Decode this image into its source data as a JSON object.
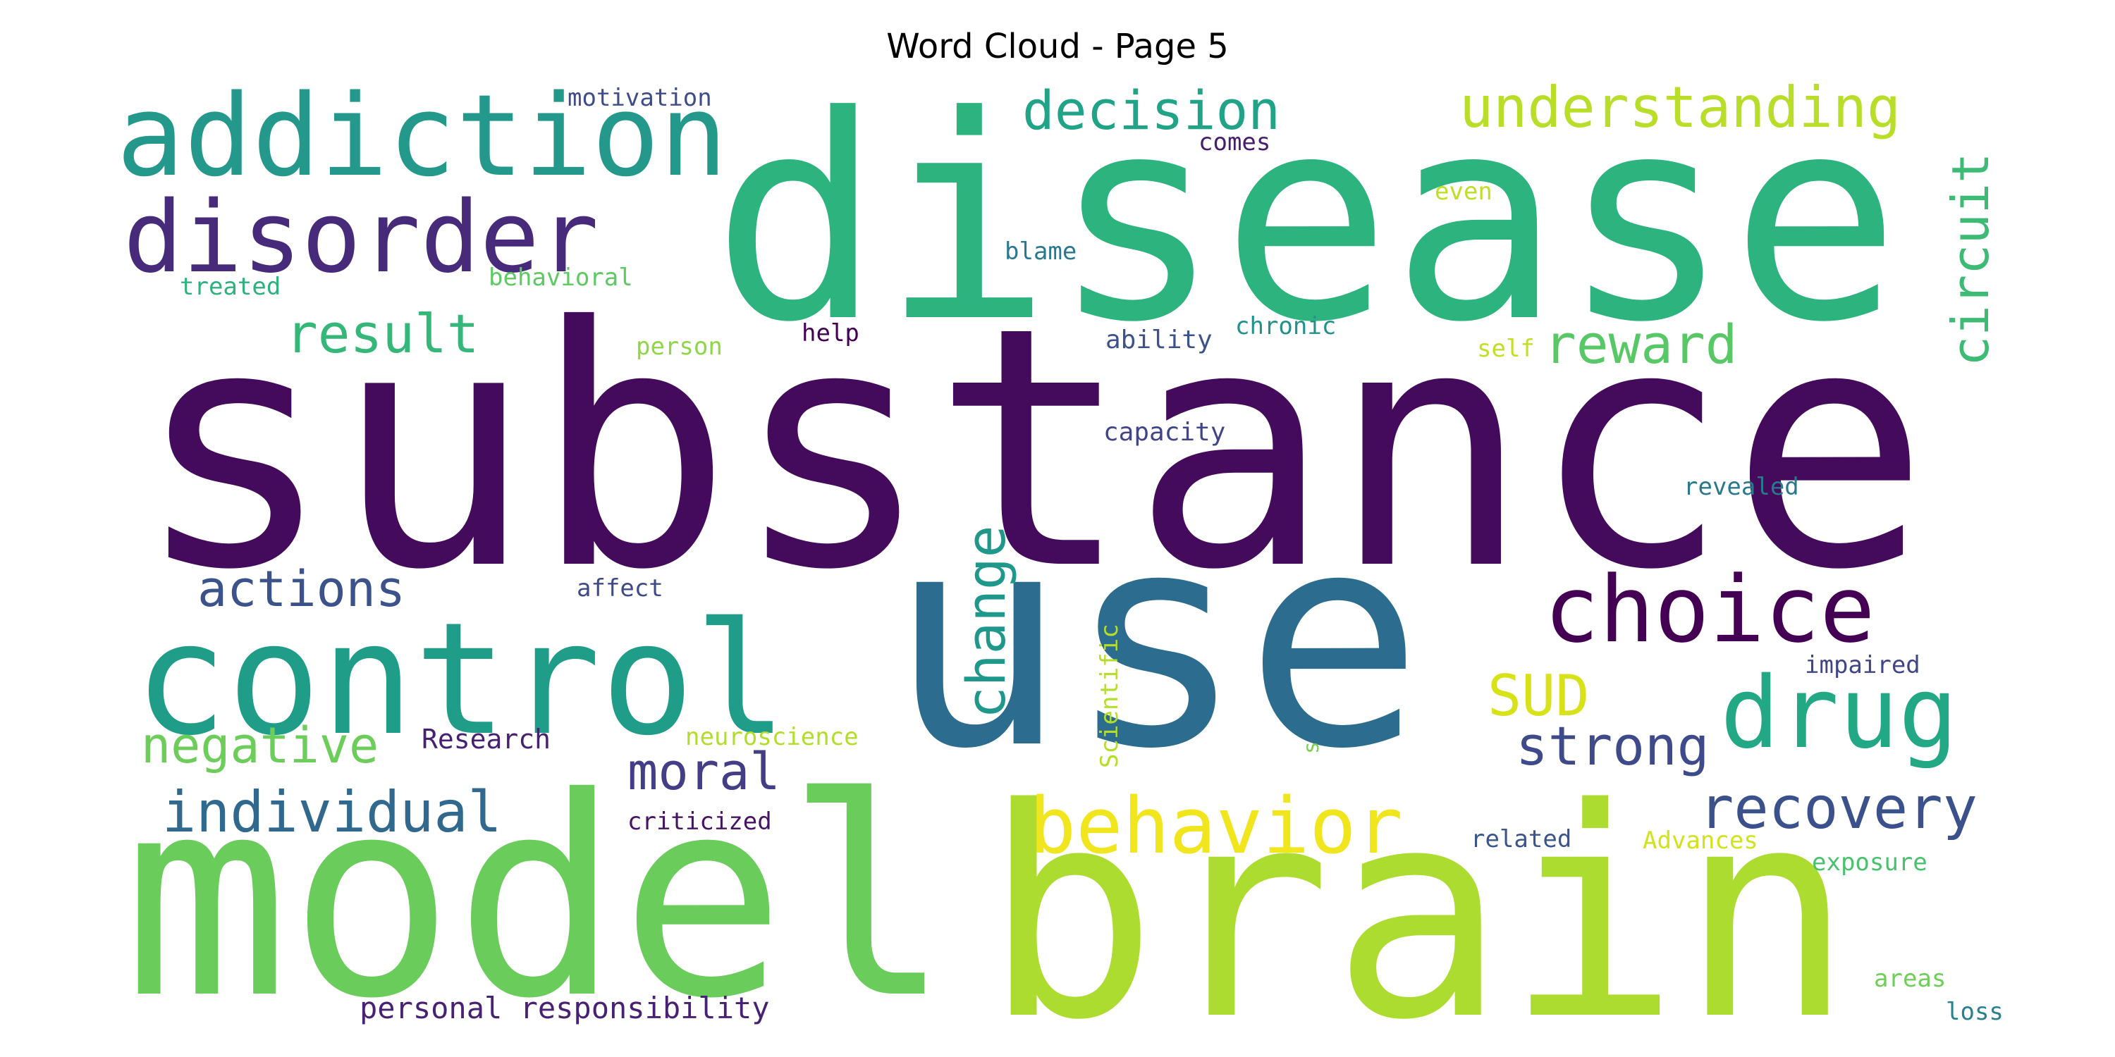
{
  "title": "Word Cloud - Page 5",
  "words": [
    {
      "text": "substance",
      "color": "#440a5c"
    },
    {
      "text": "disease",
      "color": "#2db37e"
    },
    {
      "text": "use",
      "color": "#2c6c8e"
    },
    {
      "text": "model",
      "color": "#6acd5b"
    },
    {
      "text": "brain",
      "color": "#addc30"
    },
    {
      "text": "control",
      "color": "#1f9d89"
    },
    {
      "text": "addiction",
      "color": "#24998b"
    },
    {
      "text": "disorder",
      "color": "#472b7a"
    },
    {
      "text": "understanding",
      "color": "#b8de29"
    },
    {
      "text": "decision",
      "color": "#20a386"
    },
    {
      "text": "circuit",
      "color": "#3dbb74"
    },
    {
      "text": "result",
      "color": "#35b779"
    },
    {
      "text": "reward",
      "color": "#58c765"
    },
    {
      "text": "choice",
      "color": "#440154"
    },
    {
      "text": "drug",
      "color": "#22a884"
    },
    {
      "text": "actions",
      "color": "#3b528b"
    },
    {
      "text": "change",
      "color": "#1f988b"
    },
    {
      "text": "SUD",
      "color": "#d8e219"
    },
    {
      "text": "negative",
      "color": "#6ccd5a"
    },
    {
      "text": "strong",
      "color": "#3e4a89"
    },
    {
      "text": "moral",
      "color": "#433e85"
    },
    {
      "text": "behavior",
      "color": "#f1e51d"
    },
    {
      "text": "individual",
      "color": "#31688e"
    },
    {
      "text": "recovery",
      "color": "#3b518b"
    },
    {
      "text": "personal responsibility",
      "color": "#482173"
    },
    {
      "text": "motivation",
      "color": "#3e4c8a"
    },
    {
      "text": "comes",
      "color": "#481c6e"
    },
    {
      "text": "even",
      "color": "#bddf26"
    },
    {
      "text": "blame",
      "color": "#2a788e"
    },
    {
      "text": "treated",
      "color": "#2db27d"
    },
    {
      "text": "behavioral",
      "color": "#5ec962"
    },
    {
      "text": "help",
      "color": "#440154"
    },
    {
      "text": "ability",
      "color": "#3b528b"
    },
    {
      "text": "chronic",
      "color": "#21918c"
    },
    {
      "text": "person",
      "color": "#8fd744"
    },
    {
      "text": "self",
      "color": "#c2df23"
    },
    {
      "text": "capacity",
      "color": "#414487"
    },
    {
      "text": "revealed",
      "color": "#2a788e"
    },
    {
      "text": "affect",
      "color": "#3e4a89"
    },
    {
      "text": "Scientific",
      "color": "#b5de2b"
    },
    {
      "text": "impaired",
      "color": "#404588"
    },
    {
      "text": "Research",
      "color": "#482071"
    },
    {
      "text": "neuroscience",
      "color": "#b2dd2d"
    },
    {
      "text": "s",
      "color": "#7ad151"
    },
    {
      "text": "criticized",
      "color": "#471365"
    },
    {
      "text": "related",
      "color": "#3a548c"
    },
    {
      "text": "Advances",
      "color": "#d2e21b"
    },
    {
      "text": "exposure",
      "color": "#4ac16d"
    },
    {
      "text": "areas",
      "color": "#6ece58"
    },
    {
      "text": "loss",
      "color": "#26828e"
    }
  ]
}
